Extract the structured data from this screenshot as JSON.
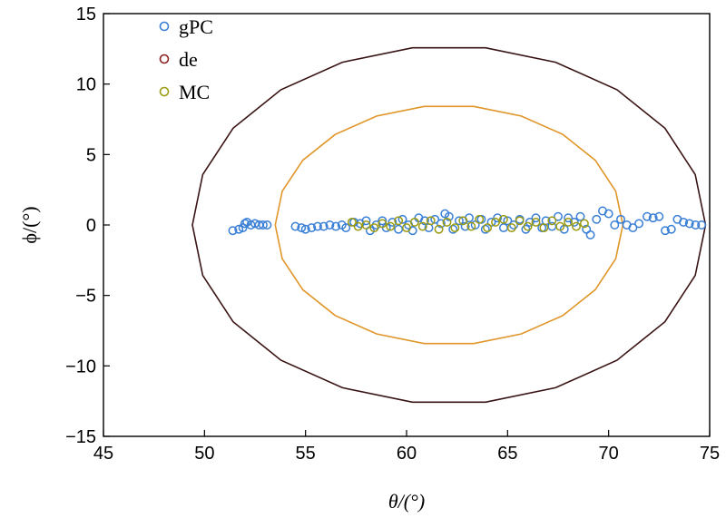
{
  "chart_data": {
    "type": "scatter",
    "xlabel": "θ/(°)",
    "ylabel": "ϕ/(°)",
    "xlim": [
      45,
      75
    ],
    "ylim": [
      -15,
      15
    ],
    "xticks": [
      45,
      50,
      55,
      60,
      65,
      70,
      75
    ],
    "yticks": [
      -15,
      -10,
      -5,
      0,
      5,
      10,
      15
    ],
    "xtick_labels": [
      "45",
      "50",
      "55",
      "60",
      "65",
      "70",
      "75"
    ],
    "ytick_labels": [
      "−15",
      "−10",
      "−5",
      "0",
      "5",
      "10",
      "15"
    ],
    "grid": false,
    "legend_position": "top-left",
    "legend": [
      {
        "name": "gPC",
        "color": "#3a7fd6"
      },
      {
        "name": "de",
        "color": "#8b2020"
      },
      {
        "name": "MC",
        "color": "#9a9a10"
      }
    ],
    "ellipses": [
      {
        "label": "outer contour",
        "center": [
          62.1,
          0
        ],
        "semi_x": 12.7,
        "semi_y": 12.7,
        "color": "#3a1414"
      },
      {
        "label": "inner contour",
        "center": [
          62.1,
          0
        ],
        "semi_x": 8.6,
        "semi_y": 8.5,
        "color": "#e0962a"
      }
    ],
    "series": [
      {
        "name": "gPC",
        "color": "#3a7fd6",
        "points": [
          [
            51.4,
            -0.4
          ],
          [
            51.7,
            -0.3
          ],
          [
            51.9,
            -0.2
          ],
          [
            52.0,
            0.1
          ],
          [
            52.1,
            0.2
          ],
          [
            52.3,
            0.0
          ],
          [
            52.5,
            0.1
          ],
          [
            52.7,
            0.0
          ],
          [
            52.9,
            0.0
          ],
          [
            53.1,
            0.0
          ],
          [
            54.5,
            -0.1
          ],
          [
            54.8,
            -0.2
          ],
          [
            55.0,
            -0.3
          ],
          [
            55.3,
            -0.2
          ],
          [
            55.6,
            -0.1
          ],
          [
            55.9,
            -0.1
          ],
          [
            56.2,
            0.0
          ],
          [
            56.5,
            -0.1
          ],
          [
            56.8,
            0.0
          ],
          [
            57.0,
            -0.2
          ],
          [
            57.4,
            0.2
          ],
          [
            57.7,
            0.1
          ],
          [
            58.0,
            0.3
          ],
          [
            58.2,
            -0.4
          ],
          [
            58.5,
            0.0
          ],
          [
            58.8,
            0.3
          ],
          [
            59.0,
            -0.2
          ],
          [
            59.3,
            0.2
          ],
          [
            59.6,
            -0.3
          ],
          [
            59.8,
            0.4
          ],
          [
            60.1,
            0.0
          ],
          [
            60.3,
            -0.4
          ],
          [
            60.6,
            0.5
          ],
          [
            60.9,
            0.3
          ],
          [
            61.1,
            -0.2
          ],
          [
            61.4,
            0.4
          ],
          [
            61.7,
            0.1
          ],
          [
            61.9,
            0.8
          ],
          [
            62.1,
            0.6
          ],
          [
            62.3,
            -0.3
          ],
          [
            62.6,
            0.3
          ],
          [
            62.9,
            -0.1
          ],
          [
            63.1,
            0.5
          ],
          [
            63.4,
            0.0
          ],
          [
            63.7,
            0.4
          ],
          [
            63.9,
            -0.3
          ],
          [
            64.2,
            0.2
          ],
          [
            64.5,
            0.5
          ],
          [
            64.8,
            -0.2
          ],
          [
            65.0,
            0.3
          ],
          [
            65.3,
            0.0
          ],
          [
            65.6,
            0.4
          ],
          [
            65.9,
            -0.3
          ],
          [
            66.1,
            0.2
          ],
          [
            66.4,
            0.5
          ],
          [
            66.7,
            -0.2
          ],
          [
            66.9,
            0.3
          ],
          [
            67.2,
            -0.1
          ],
          [
            67.5,
            0.6
          ],
          [
            67.8,
            -0.3
          ],
          [
            68.0,
            0.5
          ],
          [
            68.3,
            0.2
          ],
          [
            68.6,
            0.6
          ],
          [
            68.9,
            -0.3
          ],
          [
            69.1,
            -0.7
          ],
          [
            69.4,
            0.4
          ],
          [
            69.7,
            1.0
          ],
          [
            70.0,
            0.8
          ],
          [
            70.3,
            0.0
          ],
          [
            70.6,
            0.4
          ],
          [
            70.9,
            0.0
          ],
          [
            71.2,
            -0.2
          ],
          [
            71.5,
            0.1
          ],
          [
            71.9,
            0.6
          ],
          [
            72.2,
            0.5
          ],
          [
            72.5,
            0.6
          ],
          [
            72.8,
            -0.4
          ],
          [
            73.1,
            -0.3
          ],
          [
            73.4,
            0.4
          ],
          [
            73.7,
            0.2
          ],
          [
            74.0,
            0.1
          ],
          [
            74.3,
            0.0
          ],
          [
            74.6,
            0.0
          ]
        ]
      },
      {
        "name": "MC",
        "color": "#9a9a10",
        "points": [
          [
            57.3,
            0.2
          ],
          [
            57.6,
            -0.1
          ],
          [
            58.0,
            0.0
          ],
          [
            58.4,
            -0.2
          ],
          [
            58.8,
            0.1
          ],
          [
            59.2,
            -0.1
          ],
          [
            59.6,
            0.3
          ],
          [
            60.0,
            -0.2
          ],
          [
            60.4,
            0.2
          ],
          [
            60.8,
            -0.1
          ],
          [
            61.2,
            0.3
          ],
          [
            61.6,
            -0.3
          ],
          [
            62.0,
            0.2
          ],
          [
            62.4,
            -0.2
          ],
          [
            62.8,
            0.3
          ],
          [
            63.2,
            -0.1
          ],
          [
            63.6,
            0.4
          ],
          [
            64.0,
            -0.2
          ],
          [
            64.4,
            0.2
          ],
          [
            64.8,
            0.4
          ],
          [
            65.2,
            -0.2
          ],
          [
            65.6,
            0.3
          ],
          [
            66.0,
            -0.1
          ],
          [
            66.4,
            0.2
          ],
          [
            66.8,
            -0.2
          ],
          [
            67.2,
            0.3
          ],
          [
            67.6,
            -0.1
          ],
          [
            68.0,
            0.2
          ],
          [
            68.4,
            -0.1
          ],
          [
            68.8,
            0.1
          ]
        ]
      }
    ]
  }
}
